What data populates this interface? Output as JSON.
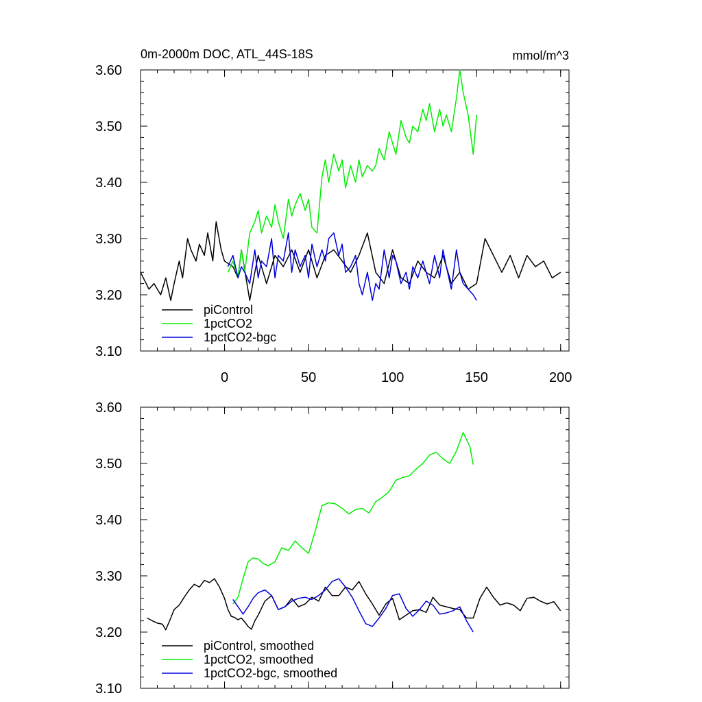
{
  "chart_data": [
    {
      "type": "line",
      "title": "0m-2000m DOC, ATL_44S-18S",
      "units": "mmol/m^3",
      "xlim": [
        -50,
        205
      ],
      "ylim": [
        3.1,
        3.6
      ],
      "x_ticks": [
        0,
        50,
        100,
        150,
        200
      ],
      "y_ticks": [
        3.1,
        3.2,
        3.3,
        3.4,
        3.5,
        3.6
      ],
      "y_tick_labels": [
        "3.10",
        "3.20",
        "3.30",
        "3.40",
        "3.50",
        "3.60"
      ],
      "grid": false,
      "legend_position": "bottom-left",
      "series": [
        {
          "name": "piControl",
          "color": "#000000",
          "x": [
            -50,
            -45,
            -42,
            -38,
            -35,
            -32,
            -30,
            -27,
            -25,
            -22,
            -20,
            -17,
            -15,
            -12,
            -10,
            -7,
            -5,
            -2,
            0,
            5,
            8,
            10,
            15,
            18,
            20,
            25,
            30,
            35,
            40,
            45,
            50,
            55,
            60,
            65,
            70,
            75,
            80,
            85,
            90,
            95,
            100,
            105,
            110,
            115,
            120,
            125,
            130,
            135,
            140,
            145,
            150,
            155,
            160,
            165,
            170,
            175,
            180,
            185,
            190,
            195,
            200
          ],
          "y": [
            3.24,
            3.21,
            3.22,
            3.2,
            3.23,
            3.19,
            3.22,
            3.26,
            3.23,
            3.3,
            3.28,
            3.26,
            3.29,
            3.27,
            3.31,
            3.26,
            3.33,
            3.28,
            3.26,
            3.25,
            3.23,
            3.28,
            3.19,
            3.24,
            3.27,
            3.22,
            3.27,
            3.25,
            3.28,
            3.24,
            3.28,
            3.23,
            3.27,
            3.28,
            3.26,
            3.24,
            3.27,
            3.31,
            3.24,
            3.22,
            3.28,
            3.23,
            3.22,
            3.26,
            3.24,
            3.23,
            3.27,
            3.22,
            3.24,
            3.21,
            3.22,
            3.3,
            3.27,
            3.24,
            3.27,
            3.23,
            3.27,
            3.25,
            3.26,
            3.23,
            3.24
          ]
        },
        {
          "name": "1pctCO2",
          "color": "#00ee00",
          "x": [
            2,
            5,
            8,
            10,
            12,
            15,
            18,
            20,
            22,
            25,
            28,
            30,
            32,
            35,
            38,
            40,
            42,
            45,
            48,
            50,
            52,
            55,
            58,
            60,
            62,
            65,
            68,
            70,
            72,
            75,
            78,
            80,
            82,
            85,
            88,
            90,
            92,
            95,
            98,
            100,
            102,
            105,
            108,
            110,
            112,
            115,
            118,
            120,
            122,
            125,
            128,
            130,
            132,
            135,
            138,
            140,
            142,
            145,
            148,
            150
          ],
          "y": [
            3.24,
            3.26,
            3.23,
            3.28,
            3.24,
            3.31,
            3.33,
            3.35,
            3.31,
            3.34,
            3.32,
            3.36,
            3.33,
            3.3,
            3.37,
            3.34,
            3.36,
            3.38,
            3.35,
            3.37,
            3.32,
            3.31,
            3.41,
            3.44,
            3.4,
            3.45,
            3.42,
            3.44,
            3.39,
            3.43,
            3.4,
            3.44,
            3.41,
            3.43,
            3.42,
            3.43,
            3.46,
            3.44,
            3.49,
            3.47,
            3.45,
            3.51,
            3.48,
            3.47,
            3.5,
            3.49,
            3.53,
            3.51,
            3.54,
            3.49,
            3.53,
            3.5,
            3.52,
            3.49,
            3.55,
            3.6,
            3.56,
            3.52,
            3.45,
            3.52
          ]
        },
        {
          "name": "1pctCO2-bgc",
          "color": "#0000dd",
          "x": [
            2,
            5,
            8,
            10,
            12,
            15,
            18,
            20,
            22,
            25,
            28,
            30,
            32,
            35,
            38,
            40,
            42,
            45,
            48,
            50,
            52,
            55,
            58,
            60,
            62,
            65,
            68,
            70,
            72,
            75,
            78,
            80,
            82,
            85,
            88,
            90,
            92,
            95,
            98,
            100,
            102,
            105,
            108,
            110,
            112,
            115,
            118,
            120,
            122,
            125,
            128,
            130,
            132,
            135,
            138,
            140,
            142,
            145,
            148,
            150
          ],
          "y": [
            3.25,
            3.27,
            3.23,
            3.25,
            3.24,
            3.22,
            3.28,
            3.23,
            3.26,
            3.25,
            3.3,
            3.23,
            3.27,
            3.26,
            3.31,
            3.24,
            3.28,
            3.25,
            3.27,
            3.23,
            3.29,
            3.25,
            3.28,
            3.26,
            3.3,
            3.31,
            3.27,
            3.29,
            3.24,
            3.25,
            3.27,
            3.22,
            3.2,
            3.24,
            3.19,
            3.22,
            3.21,
            3.28,
            3.23,
            3.27,
            3.26,
            3.22,
            3.24,
            3.21,
            3.25,
            3.23,
            3.26,
            3.24,
            3.22,
            3.27,
            3.23,
            3.28,
            3.25,
            3.21,
            3.28,
            3.24,
            3.22,
            3.21,
            3.2,
            3.19
          ]
        }
      ]
    },
    {
      "type": "line",
      "title": "",
      "units": "",
      "xlim": [
        -50,
        205
      ],
      "ylim": [
        3.1,
        3.6
      ],
      "x_ticks": [
        0,
        50,
        100,
        150,
        200
      ],
      "y_ticks": [
        3.1,
        3.2,
        3.3,
        3.4,
        3.5,
        3.6
      ],
      "y_tick_labels": [
        "3.10",
        "3.20",
        "3.30",
        "3.40",
        "3.50",
        "3.60"
      ],
      "grid": false,
      "legend_position": "bottom-left",
      "series": [
        {
          "name": "piControl, smoothed",
          "color": "#000000",
          "x": [
            -46,
            -43,
            -40,
            -37,
            -35,
            -32,
            -30,
            -27,
            -24,
            -21,
            -18,
            -15,
            -12,
            -9,
            -6,
            -3,
            0,
            2,
            4,
            6,
            8,
            10,
            12,
            14,
            16,
            18,
            20,
            24,
            28,
            32,
            36,
            40,
            44,
            48,
            52,
            56,
            60,
            64,
            68,
            72,
            76,
            80,
            84,
            88,
            92,
            96,
            100,
            104,
            108,
            112,
            116,
            120,
            124,
            128,
            132,
            136,
            140,
            144,
            148,
            152,
            156,
            160,
            164,
            168,
            172,
            176,
            180,
            184,
            188,
            192,
            196,
            200
          ],
          "y": [
            3.225,
            3.22,
            3.216,
            3.214,
            3.204,
            3.225,
            3.24,
            3.248,
            3.262,
            3.275,
            3.285,
            3.28,
            3.292,
            3.288,
            3.295,
            3.28,
            3.26,
            3.24,
            3.228,
            3.226,
            3.222,
            3.225,
            3.218,
            3.21,
            3.205,
            3.22,
            3.23,
            3.255,
            3.265,
            3.24,
            3.245,
            3.26,
            3.245,
            3.25,
            3.262,
            3.255,
            3.28,
            3.265,
            3.265,
            3.28,
            3.275,
            3.29,
            3.268,
            3.25,
            3.23,
            3.25,
            3.26,
            3.222,
            3.23,
            3.238,
            3.24,
            3.235,
            3.262,
            3.248,
            3.245,
            3.242,
            3.24,
            3.225,
            3.225,
            3.26,
            3.28,
            3.262,
            3.248,
            3.252,
            3.248,
            3.238,
            3.26,
            3.262,
            3.255,
            3.25,
            3.254,
            3.238
          ]
        },
        {
          "name": "1pctCO2, smoothed",
          "color": "#00ee00",
          "x": [
            5,
            8,
            11,
            14,
            17,
            20,
            23,
            26,
            30,
            34,
            38,
            42,
            46,
            50,
            54,
            58,
            62,
            66,
            70,
            74,
            78,
            82,
            86,
            90,
            94,
            98,
            102,
            106,
            110,
            114,
            118,
            122,
            126,
            130,
            134,
            138,
            142,
            146,
            148
          ],
          "y": [
            3.25,
            3.262,
            3.295,
            3.325,
            3.332,
            3.33,
            3.322,
            3.318,
            3.325,
            3.35,
            3.345,
            3.362,
            3.35,
            3.34,
            3.38,
            3.425,
            3.43,
            3.428,
            3.42,
            3.41,
            3.418,
            3.42,
            3.412,
            3.432,
            3.44,
            3.45,
            3.47,
            3.475,
            3.478,
            3.49,
            3.5,
            3.515,
            3.52,
            3.508,
            3.5,
            3.522,
            3.555,
            3.53,
            3.498
          ]
        },
        {
          "name": "1pctCO2-bgc, smoothed",
          "color": "#0000dd",
          "x": [
            5,
            8,
            11,
            14,
            17,
            20,
            24,
            28,
            32,
            36,
            40,
            44,
            48,
            52,
            56,
            60,
            64,
            68,
            72,
            76,
            80,
            84,
            88,
            92,
            96,
            100,
            104,
            108,
            112,
            116,
            120,
            124,
            128,
            132,
            136,
            140,
            144,
            148
          ],
          "y": [
            3.258,
            3.245,
            3.232,
            3.245,
            3.26,
            3.27,
            3.275,
            3.265,
            3.24,
            3.245,
            3.255,
            3.26,
            3.262,
            3.258,
            3.265,
            3.275,
            3.29,
            3.295,
            3.28,
            3.262,
            3.238,
            3.215,
            3.21,
            3.225,
            3.242,
            3.265,
            3.268,
            3.242,
            3.228,
            3.24,
            3.255,
            3.248,
            3.232,
            3.234,
            3.238,
            3.245,
            3.22,
            3.2
          ]
        }
      ]
    }
  ]
}
